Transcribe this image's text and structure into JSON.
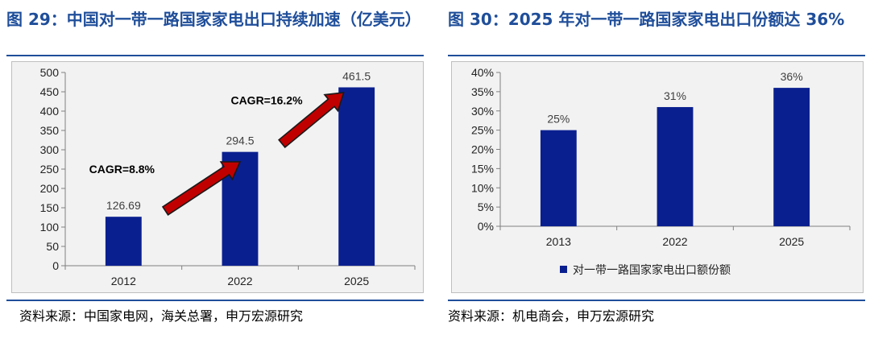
{
  "left": {
    "title": "图 29：中国对一带一路国家家电出口持续加速（亿美元）",
    "source": "资料来源：中国家电网，海关总署，申万宏源研究",
    "annotations": [
      "CAGR=8.8%",
      "CAGR=16.2%"
    ]
  },
  "right": {
    "title": "图 30：2025 年对一带一路国家家电出口份额达 36%",
    "source": "资料来源：机电商会，申万宏源研究"
  },
  "chart_data": [
    {
      "type": "bar",
      "categories": [
        "2012",
        "2022",
        "2025"
      ],
      "values": [
        126.69,
        294.5,
        461.5
      ],
      "data_labels": [
        "126.69",
        "294.5",
        "461.5"
      ],
      "ylim": [
        0,
        500
      ],
      "yticks": [
        "0",
        "50",
        "100",
        "150",
        "200",
        "250",
        "300",
        "350",
        "400",
        "450",
        "500"
      ],
      "color": "#0a1f8f",
      "arrow_color": "#c00000",
      "grid": false,
      "legend": "none"
    },
    {
      "type": "bar",
      "categories": [
        "2013",
        "2022",
        "2025"
      ],
      "values": [
        25,
        31,
        36
      ],
      "data_labels": [
        "25%",
        "31%",
        "36%"
      ],
      "ylim": [
        0,
        40
      ],
      "yticks": [
        "0%",
        "5%",
        "10%",
        "15%",
        "20%",
        "25%",
        "30%",
        "35%",
        "40%"
      ],
      "series": [
        {
          "name": "对一带一路国家家电出口额份额",
          "values": [
            25,
            31,
            36
          ]
        }
      ],
      "color": "#0a1f8f",
      "grid": false,
      "legend": "bottom"
    }
  ]
}
